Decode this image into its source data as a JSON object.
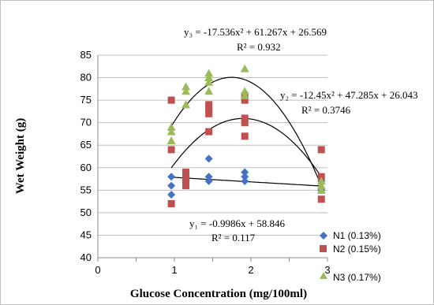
{
  "chart_data": {
    "type": "scatter",
    "xlabel": "Glucose Concentration  (mg/100ml)",
    "ylabel": "Wet Weight  (g)",
    "xlim": [
      0,
      3
    ],
    "ylim": [
      40,
      85
    ],
    "x_ticks": [
      "0",
      "1",
      "2",
      "3"
    ],
    "y_ticks": [
      "40",
      "45",
      "50",
      "55",
      "60",
      "65",
      "70",
      "75",
      "80",
      "85"
    ],
    "grid": "horizontal",
    "legend_position": "right",
    "series": [
      {
        "name": "N1 (0.13%)",
        "marker": "diamond",
        "color": "#4472C4",
        "points": [
          [
            0.96,
            58
          ],
          [
            0.96,
            56
          ],
          [
            0.96,
            54
          ],
          [
            1.15,
            58
          ],
          [
            1.15,
            57
          ],
          [
            1.45,
            62
          ],
          [
            1.45,
            58
          ],
          [
            1.45,
            57
          ],
          [
            1.92,
            59
          ],
          [
            1.92,
            58
          ],
          [
            1.92,
            57
          ],
          [
            2.92,
            57
          ],
          [
            2.92,
            55
          ]
        ],
        "trendline": {
          "kind": "linear",
          "a": -0.9986,
          "b": 58.846,
          "x_range": [
            0.96,
            2.92
          ]
        },
        "equation": "y₁ = -0.9986x + 58.846",
        "r2": "R² = 0.117"
      },
      {
        "name": "N2 (0.15%)",
        "marker": "square",
        "color": "#C0504D",
        "points": [
          [
            0.96,
            75
          ],
          [
            0.96,
            64
          ],
          [
            0.96,
            52
          ],
          [
            1.15,
            59
          ],
          [
            1.15,
            58
          ],
          [
            1.15,
            57
          ],
          [
            1.15,
            56
          ],
          [
            1.45,
            74
          ],
          [
            1.45,
            73
          ],
          [
            1.45,
            72
          ],
          [
            1.45,
            68
          ],
          [
            1.92,
            76
          ],
          [
            1.92,
            75
          ],
          [
            1.92,
            71
          ],
          [
            1.92,
            70
          ],
          [
            1.92,
            67
          ],
          [
            2.92,
            64
          ],
          [
            2.92,
            58
          ],
          [
            2.92,
            53
          ]
        ],
        "trendline": {
          "kind": "poly2",
          "a": -12.45,
          "b": 47.285,
          "c": 26.043,
          "x_range": [
            0.96,
            2.92
          ]
        },
        "equation": "y₂ = -12.45x² + 47.285x + 26.043",
        "r2": "R² = 0.3746"
      },
      {
        "name": "N3 (0.17%)",
        "marker": "triangle",
        "color": "#9BBB59",
        "points": [
          [
            0.96,
            69
          ],
          [
            0.96,
            68
          ],
          [
            0.96,
            66
          ],
          [
            1.15,
            78
          ],
          [
            1.15,
            77
          ],
          [
            1.15,
            74
          ],
          [
            1.45,
            81
          ],
          [
            1.45,
            80
          ],
          [
            1.45,
            79
          ],
          [
            1.45,
            77
          ],
          [
            1.92,
            82
          ],
          [
            1.92,
            77
          ],
          [
            1.92,
            76
          ],
          [
            2.92,
            57
          ],
          [
            2.92,
            56
          ],
          [
            2.92,
            55
          ]
        ],
        "trendline": {
          "kind": "poly2",
          "a": -17.536,
          "b": 61.267,
          "c": 26.569,
          "x_range": [
            0.96,
            2.92
          ]
        },
        "equation": "y₃ = -17.536x²  + 61.267x  + 26.569",
        "r2": "R² = 0.932"
      }
    ]
  }
}
